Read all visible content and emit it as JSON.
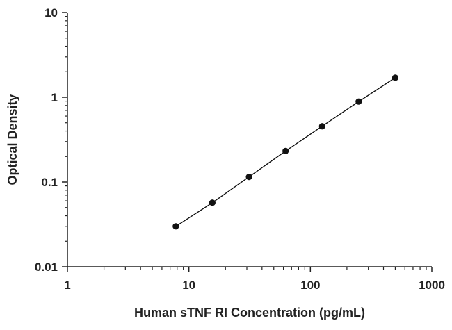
{
  "chart_data": {
    "type": "scatter",
    "title": "",
    "xlabel": "Human sTNF RI Concentration (pg/mL)",
    "ylabel": "Optical Density",
    "x_scale": "log",
    "y_scale": "log",
    "xlim": [
      1,
      1000
    ],
    "ylim": [
      0.01,
      10
    ],
    "x_ticks": [
      "1",
      "10",
      "100",
      "1000"
    ],
    "y_ticks": [
      "0.01",
      "0.1",
      "1",
      "10"
    ],
    "grid": false,
    "legend": "none",
    "series": [
      {
        "x": [
          7.8,
          15.6,
          31.25,
          62.5,
          125,
          250,
          500
        ],
        "y": [
          0.03,
          0.057,
          0.115,
          0.232,
          0.455,
          0.89,
          1.7
        ],
        "marker": "circle",
        "fit_line": true,
        "color": "#111111"
      }
    ]
  }
}
